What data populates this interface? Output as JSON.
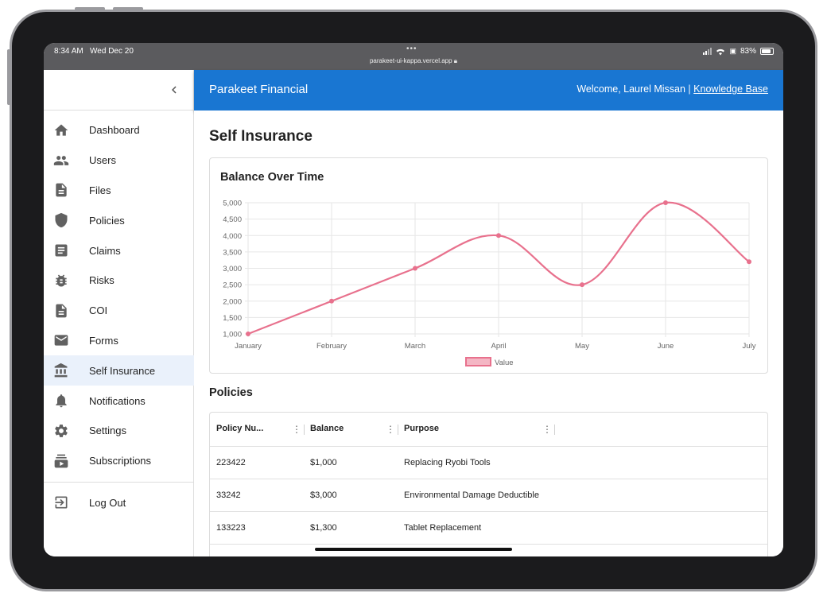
{
  "status": {
    "time": "8:34 AM",
    "date": "Wed Dec 20",
    "url": "parakeet-ui-kappa.vercel.app",
    "battery": "83%"
  },
  "app": {
    "brand": "Parakeet Financial",
    "welcome": "Welcome, Laurel Missan |",
    "kb_link": "Knowledge Base",
    "accent": "#1976d2"
  },
  "sidebar": {
    "items": [
      {
        "label": "Dashboard",
        "icon": "home-icon"
      },
      {
        "label": "Users",
        "icon": "users-icon"
      },
      {
        "label": "Files",
        "icon": "file-icon"
      },
      {
        "label": "Policies",
        "icon": "shield-icon"
      },
      {
        "label": "Claims",
        "icon": "document-icon"
      },
      {
        "label": "Risks",
        "icon": "bug-icon"
      },
      {
        "label": "COI",
        "icon": "certificate-icon"
      },
      {
        "label": "Forms",
        "icon": "mail-icon"
      },
      {
        "label": "Self Insurance",
        "icon": "bank-icon"
      },
      {
        "label": "Notifications",
        "icon": "bell-icon"
      },
      {
        "label": "Settings",
        "icon": "gear-icon"
      },
      {
        "label": "Subscriptions",
        "icon": "subscriptions-icon"
      }
    ],
    "active": "Self Insurance",
    "logout": "Log Out"
  },
  "page": {
    "title": "Self Insurance",
    "chart_title": "Balance Over Time",
    "policies_title": "Policies"
  },
  "chart_data": {
    "type": "line",
    "title": "Balance Over Time",
    "categories": [
      "January",
      "February",
      "March",
      "April",
      "May",
      "June",
      "July"
    ],
    "series": [
      {
        "name": "Value",
        "values": [
          1000,
          2000,
          3000,
          4000,
          2500,
          5000,
          3200
        ],
        "color": "#e8718d"
      }
    ],
    "ylim": [
      1000,
      5000
    ],
    "yticks": [
      "1,000",
      "1,500",
      "2,000",
      "2,500",
      "3,000",
      "3,500",
      "4,000",
      "4,500",
      "5,000"
    ],
    "grid": true,
    "legend": "bottom"
  },
  "policies": {
    "columns": [
      "Policy Nu...",
      "Balance",
      "Purpose"
    ],
    "rows": [
      [
        "223422",
        "$1,000",
        "Replacing Ryobi Tools"
      ],
      [
        "33242",
        "$3,000",
        "Environmental Damage Deductible"
      ],
      [
        "133223",
        "$1,300",
        "Tablet Replacement"
      ]
    ]
  }
}
